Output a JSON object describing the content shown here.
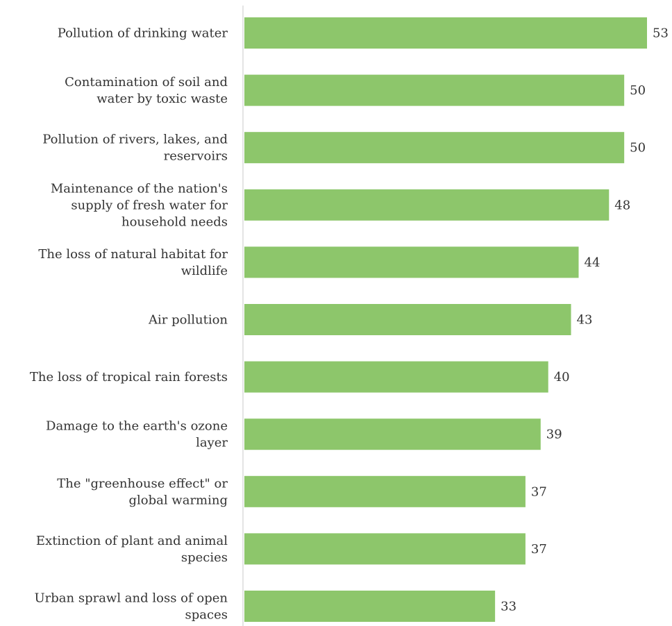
{
  "chart_data": {
    "type": "bar",
    "orientation": "horizontal",
    "categories": [
      [
        "Pollution of drinking water"
      ],
      [
        "Contamination of soil and",
        "water by toxic waste"
      ],
      [
        "Pollution of rivers, lakes, and",
        "reservoirs"
      ],
      [
        "Maintenance of the nation's",
        "supply of fresh water for",
        "household needs"
      ],
      [
        "The loss of natural habitat for",
        "wildlife"
      ],
      [
        "Air pollution"
      ],
      [
        "The loss of tropical rain forests"
      ],
      [
        "Damage to the earth's ozone",
        "layer"
      ],
      [
        "The \"greenhouse effect\" or",
        "global warming"
      ],
      [
        "Extinction of plant and animal",
        "species"
      ],
      [
        "Urban sprawl and loss of open",
        "spaces"
      ]
    ],
    "values": [
      53,
      50,
      50,
      48,
      44,
      43,
      40,
      39,
      37,
      37,
      33
    ],
    "xlim": [
      0,
      53
    ],
    "grid": false,
    "colors": {
      "bar": "#8dc66b",
      "axis": "#c8c8c8"
    }
  }
}
